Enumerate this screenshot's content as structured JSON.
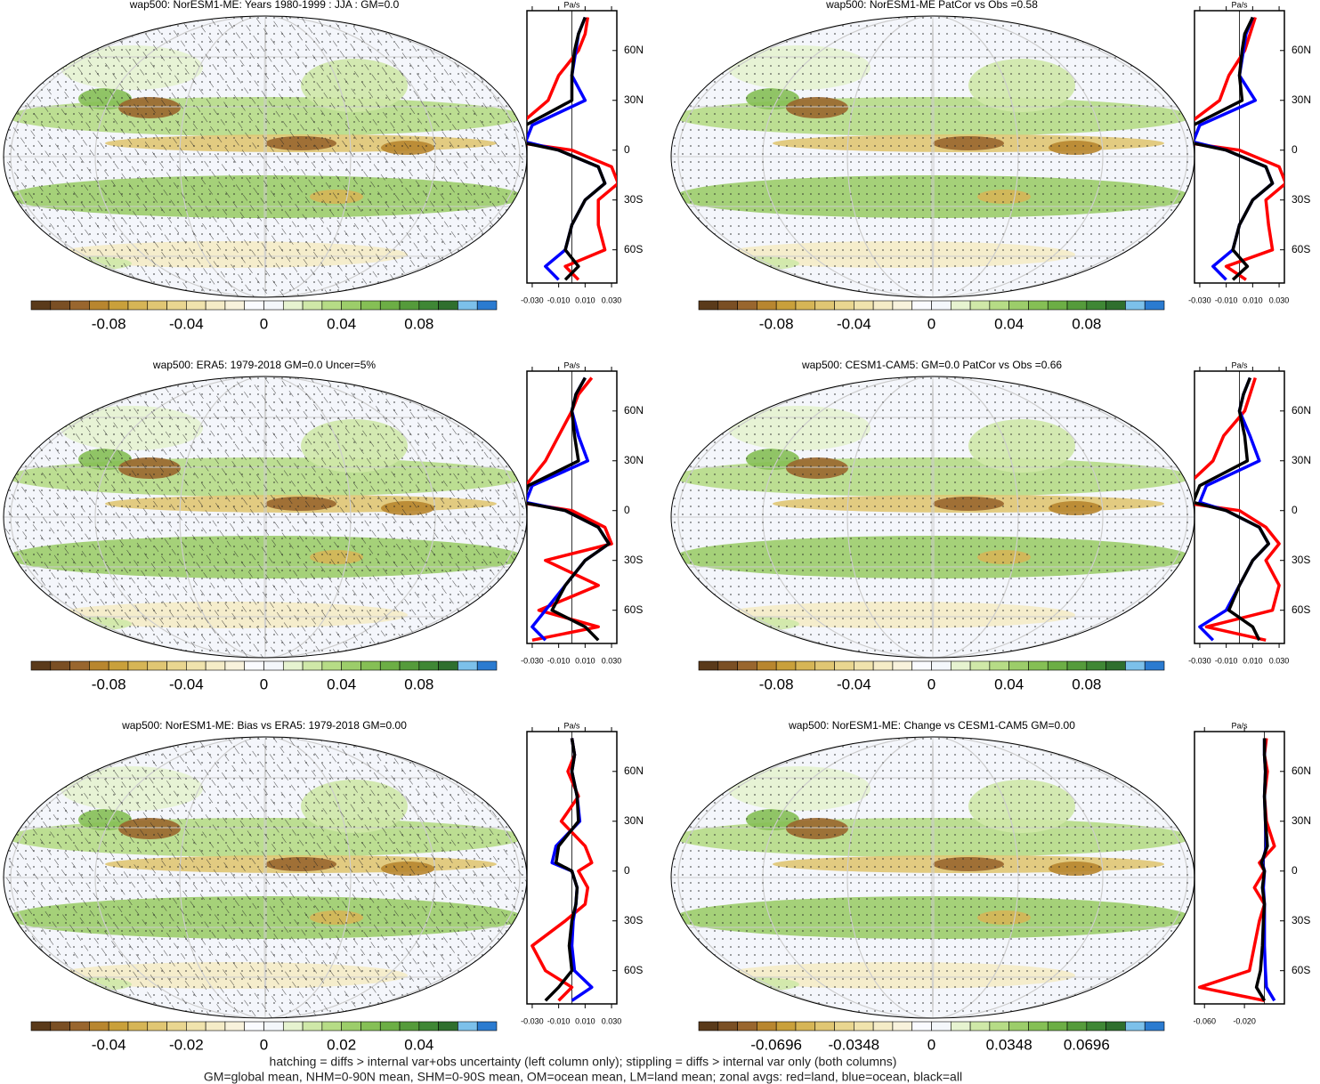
{
  "panels": [
    {
      "title": "wap500: NorESM1-ME: Years 1980-1999 : JJA : GM=0.0",
      "hatch": true,
      "colorbar_labels": [
        "-0.08",
        "-0.04",
        "0",
        "0.04",
        "0.08"
      ],
      "profile": {
        "unit": "Pa/s",
        "xlim": [
          -0.034,
          0.034
        ],
        "ylim": [
          -80,
          84
        ],
        "xticks": [
          {
            "value": -0.03,
            "label": "-0.030"
          },
          {
            "value": -0.01,
            "label": "-0.010"
          },
          {
            "value": 0.01,
            "label": "0.010"
          },
          {
            "value": 0.03,
            "label": "0.030"
          }
        ],
        "yticks": [
          {
            "value": 60,
            "label": "60N"
          },
          {
            "value": 30,
            "label": "30N"
          },
          0,
          {
            "value": -30,
            "label": "30S"
          },
          {
            "value": -60,
            "label": "60S"
          }
        ],
        "lats": [
          80,
          70,
          60,
          45,
          30,
          15,
          5,
          0,
          -10,
          -20,
          -30,
          -45,
          -60,
          -70,
          -78
        ],
        "series": [
          {
            "color": "#ff0000",
            "values": [
              0.012,
              0.01,
              0.005,
              -0.01,
              -0.018,
              -0.04,
              -0.045,
              0.0,
              0.03,
              0.035,
              0.02,
              0.02,
              0.025,
              -0.005,
              0.005
            ]
          },
          {
            "color": "#0000ff",
            "values": [
              0.01,
              0.005,
              0.003,
              0.0,
              0.01,
              -0.03,
              -0.035,
              -0.01,
              0.02,
              0.025,
              0.01,
              0.0,
              -0.005,
              -0.02,
              -0.01
            ]
          },
          {
            "color": "#000000",
            "values": [
              0.01,
              0.005,
              0.002,
              0.0,
              0.0,
              -0.035,
              -0.04,
              -0.01,
              0.02,
              0.025,
              0.01,
              0.0,
              -0.005,
              0.005,
              -0.005
            ]
          }
        ]
      }
    },
    {
      "title": "wap500: NorESM1-ME PatCor vs Obs =0.58",
      "hatch": false,
      "colorbar_labels": [
        "-0.08",
        "-0.04",
        "0",
        "0.04",
        "0.08"
      ],
      "profile": {
        "unit": "Pa/s",
        "xlim": [
          -0.034,
          0.034
        ],
        "ylim": [
          -80,
          84
        ],
        "xticks": [
          {
            "value": -0.03,
            "label": "-0.030"
          },
          {
            "value": -0.01,
            "label": "-0.010"
          },
          {
            "value": 0.01,
            "label": "0.010"
          },
          {
            "value": 0.03,
            "label": "0.030"
          }
        ],
        "yticks": [
          {
            "value": 60,
            "label": "60N"
          },
          {
            "value": 30,
            "label": "30N"
          },
          0,
          {
            "value": -30,
            "label": "30S"
          },
          {
            "value": -60,
            "label": "60S"
          }
        ],
        "lats": [
          80,
          70,
          60,
          45,
          30,
          15,
          5,
          0,
          -10,
          -20,
          -30,
          -45,
          -60,
          -70,
          -78
        ],
        "series": [
          {
            "color": "#ff0000",
            "values": [
              0.012,
              0.008,
              0.004,
              -0.008,
              -0.015,
              -0.04,
              -0.045,
              0.0,
              0.03,
              0.035,
              0.02,
              0.022,
              0.025,
              -0.01,
              0.005
            ]
          },
          {
            "color": "#0000ff",
            "values": [
              0.01,
              0.005,
              0.003,
              0.0,
              0.012,
              -0.03,
              -0.035,
              -0.01,
              0.02,
              0.025,
              0.01,
              0.0,
              -0.005,
              -0.02,
              -0.01
            ]
          },
          {
            "color": "#000000",
            "values": [
              0.01,
              0.004,
              0.002,
              0.0,
              0.002,
              -0.035,
              -0.04,
              -0.01,
              0.02,
              0.025,
              0.01,
              0.0,
              -0.005,
              0.006,
              -0.005
            ]
          }
        ]
      }
    },
    {
      "title": "wap500: ERA5: 1979-2018 GM=0.0 Uncer=5%",
      "hatch": true,
      "colorbar_labels": [
        "-0.08",
        "-0.04",
        "0",
        "0.04",
        "0.08"
      ],
      "profile": {
        "unit": "Pa/s",
        "xlim": [
          -0.034,
          0.034
        ],
        "ylim": [
          -80,
          84
        ],
        "xticks": [
          {
            "value": -0.03,
            "label": "-0.030"
          },
          {
            "value": -0.01,
            "label": "-0.010"
          },
          {
            "value": 0.01,
            "label": "0.010"
          },
          {
            "value": 0.03,
            "label": "0.030"
          }
        ],
        "yticks": [
          {
            "value": 60,
            "label": "60N"
          },
          {
            "value": 30,
            "label": "30N"
          },
          0,
          {
            "value": -30,
            "label": "30S"
          },
          {
            "value": -60,
            "label": "60S"
          }
        ],
        "lats": [
          80,
          70,
          60,
          45,
          30,
          15,
          5,
          0,
          -10,
          -20,
          -30,
          -45,
          -60,
          -70,
          -78
        ],
        "series": [
          {
            "color": "#ff0000",
            "values": [
              0.015,
              0.005,
              0.0,
              -0.01,
              -0.02,
              -0.035,
              -0.04,
              0.0,
              0.025,
              0.03,
              -0.02,
              0.02,
              -0.025,
              0.02,
              -0.03
            ]
          },
          {
            "color": "#0000ff",
            "values": [
              0.01,
              0.003,
              0.0,
              0.005,
              0.012,
              -0.03,
              -0.035,
              -0.005,
              0.02,
              0.028,
              0.01,
              -0.005,
              -0.02,
              -0.03,
              -0.02
            ]
          },
          {
            "color": "#000000",
            "values": [
              0.01,
              0.003,
              0.0,
              0.002,
              0.005,
              -0.033,
              -0.038,
              -0.005,
              0.02,
              0.028,
              0.01,
              -0.005,
              -0.015,
              0.01,
              0.02
            ]
          }
        ]
      }
    },
    {
      "title": "wap500: CESM1-CAM5: GM=0.0 PatCor vs Obs =0.66",
      "hatch": false,
      "colorbar_labels": [
        "-0.08",
        "-0.04",
        "0",
        "0.04",
        "0.08"
      ],
      "profile": {
        "unit": "Pa/s",
        "xlim": [
          -0.034,
          0.034
        ],
        "ylim": [
          -80,
          84
        ],
        "xticks": [
          {
            "value": -0.03,
            "label": "-0.030"
          },
          {
            "value": -0.01,
            "label": "-0.010"
          },
          {
            "value": 0.01,
            "label": "0.010"
          },
          {
            "value": 0.03,
            "label": "0.030"
          }
        ],
        "yticks": [
          {
            "value": 60,
            "label": "60N"
          },
          {
            "value": 30,
            "label": "30N"
          },
          0,
          {
            "value": -30,
            "label": "30S"
          },
          {
            "value": -60,
            "label": "60S"
          }
        ],
        "lats": [
          80,
          70,
          60,
          45,
          30,
          15,
          5,
          0,
          -10,
          -20,
          -30,
          -45,
          -60,
          -70,
          -78
        ],
        "series": [
          {
            "color": "#ff0000",
            "values": [
              0.012,
              0.008,
              0.004,
              -0.012,
              -0.02,
              -0.04,
              -0.045,
              0.0,
              0.02,
              0.03,
              0.02,
              0.03,
              0.025,
              -0.025,
              0.02
            ]
          },
          {
            "color": "#0000ff",
            "values": [
              0.008,
              0.003,
              0.0,
              0.008,
              0.015,
              -0.025,
              -0.03,
              -0.01,
              0.015,
              0.022,
              0.01,
              0.0,
              -0.01,
              -0.03,
              -0.02
            ]
          },
          {
            "color": "#000000",
            "values": [
              0.008,
              0.003,
              0.0,
              0.004,
              0.006,
              -0.03,
              -0.035,
              -0.01,
              0.015,
              0.022,
              0.01,
              0.0,
              -0.008,
              0.01,
              0.015
            ]
          }
        ]
      }
    },
    {
      "title": "wap500: NorESM1-ME: Bias vs ERA5: 1979-2018 GM=0.00",
      "hatch": true,
      "colorbar_labels": [
        "-0.04",
        "-0.02",
        "0",
        "0.02",
        "0.04"
      ],
      "profile": {
        "unit": "Pa/s",
        "xlim": [
          -0.034,
          0.034
        ],
        "ylim": [
          -80,
          84
        ],
        "xticks": [
          {
            "value": -0.03,
            "label": "-0.030"
          },
          {
            "value": -0.01,
            "label": "-0.010"
          },
          {
            "value": 0.01,
            "label": "0.010"
          },
          {
            "value": 0.03,
            "label": "0.030"
          }
        ],
        "yticks": [
          {
            "value": 60,
            "label": "60N"
          },
          {
            "value": 30,
            "label": "30N"
          },
          0,
          {
            "value": -30,
            "label": "30S"
          },
          {
            "value": -60,
            "label": "60S"
          }
        ],
        "lats": [
          80,
          70,
          60,
          45,
          30,
          15,
          5,
          0,
          -10,
          -20,
          -30,
          -45,
          -60,
          -70,
          -78
        ],
        "series": [
          {
            "color": "#ff0000",
            "values": [
              0.0,
              0.002,
              -0.003,
              0.005,
              -0.008,
              0.01,
              0.015,
              0.005,
              0.012,
              0.01,
              -0.005,
              -0.03,
              -0.02,
              0.0,
              -0.01
            ]
          },
          {
            "color": "#0000ff",
            "values": [
              0.0,
              0.002,
              0.0,
              0.004,
              0.006,
              -0.012,
              -0.015,
              0.0,
              0.004,
              0.003,
              0.001,
              0.0,
              0.002,
              0.015,
              0.0
            ]
          },
          {
            "color": "#000000",
            "values": [
              0.0,
              0.002,
              0.0,
              0.004,
              0.005,
              -0.01,
              -0.012,
              0.0,
              0.004,
              0.003,
              0.0,
              -0.002,
              0.0,
              -0.01,
              -0.02
            ]
          }
        ]
      }
    },
    {
      "title": "wap500: NorESM1-ME: Change vs CESM1-CAM5 GM=0.00",
      "hatch": false,
      "colorbar_labels": [
        "-0.0696",
        "-0.0348",
        "0",
        "0.0348",
        "0.0696"
      ],
      "profile": {
        "unit": "Pa/s",
        "xlim": [
          -0.07,
          0.02
        ],
        "ylim": [
          -80,
          84
        ],
        "xticks": [
          {
            "value": -0.06,
            "label": "-0.060"
          },
          {
            "value": -0.02,
            "label": "-0.020"
          }
        ],
        "yticks": [
          {
            "value": 60,
            "label": "60N"
          },
          {
            "value": 30,
            "label": "30N"
          },
          0,
          {
            "value": -30,
            "label": "30S"
          },
          {
            "value": -60,
            "label": "60S"
          }
        ],
        "lats": [
          80,
          70,
          60,
          45,
          30,
          15,
          5,
          0,
          -10,
          -20,
          -30,
          -45,
          -60,
          -70,
          -78
        ],
        "series": [
          {
            "color": "#ff0000",
            "values": [
              0.002,
              0.0,
              0.003,
              0.0,
              0.002,
              0.01,
              -0.005,
              0.0,
              -0.01,
              0.0,
              -0.005,
              -0.01,
              -0.015,
              -0.065,
              0.0
            ]
          },
          {
            "color": "#0000ff",
            "values": [
              0.0,
              0.0,
              0.001,
              0.0,
              0.001,
              0.002,
              -0.002,
              0.0,
              -0.001,
              0.0,
              0.0,
              0.0,
              0.001,
              0.002,
              0.01
            ]
          },
          {
            "color": "#000000",
            "values": [
              0.0,
              0.0,
              0.001,
              0.0,
              0.001,
              0.003,
              -0.003,
              0.0,
              -0.002,
              0.0,
              -0.001,
              -0.002,
              -0.004,
              -0.008,
              0.0
            ]
          }
        ]
      }
    }
  ],
  "footer": [
    "hatching = diffs > internal var+obs uncertainty (left column only); stippling = diffs > internal var only (both columns)",
    "GM=global mean, NHM=0-90N mean, SHM=0-90S mean, OM=ocean mean, LM=land mean; zonal avgs: red=land, blue=ocean, black=all"
  ]
}
